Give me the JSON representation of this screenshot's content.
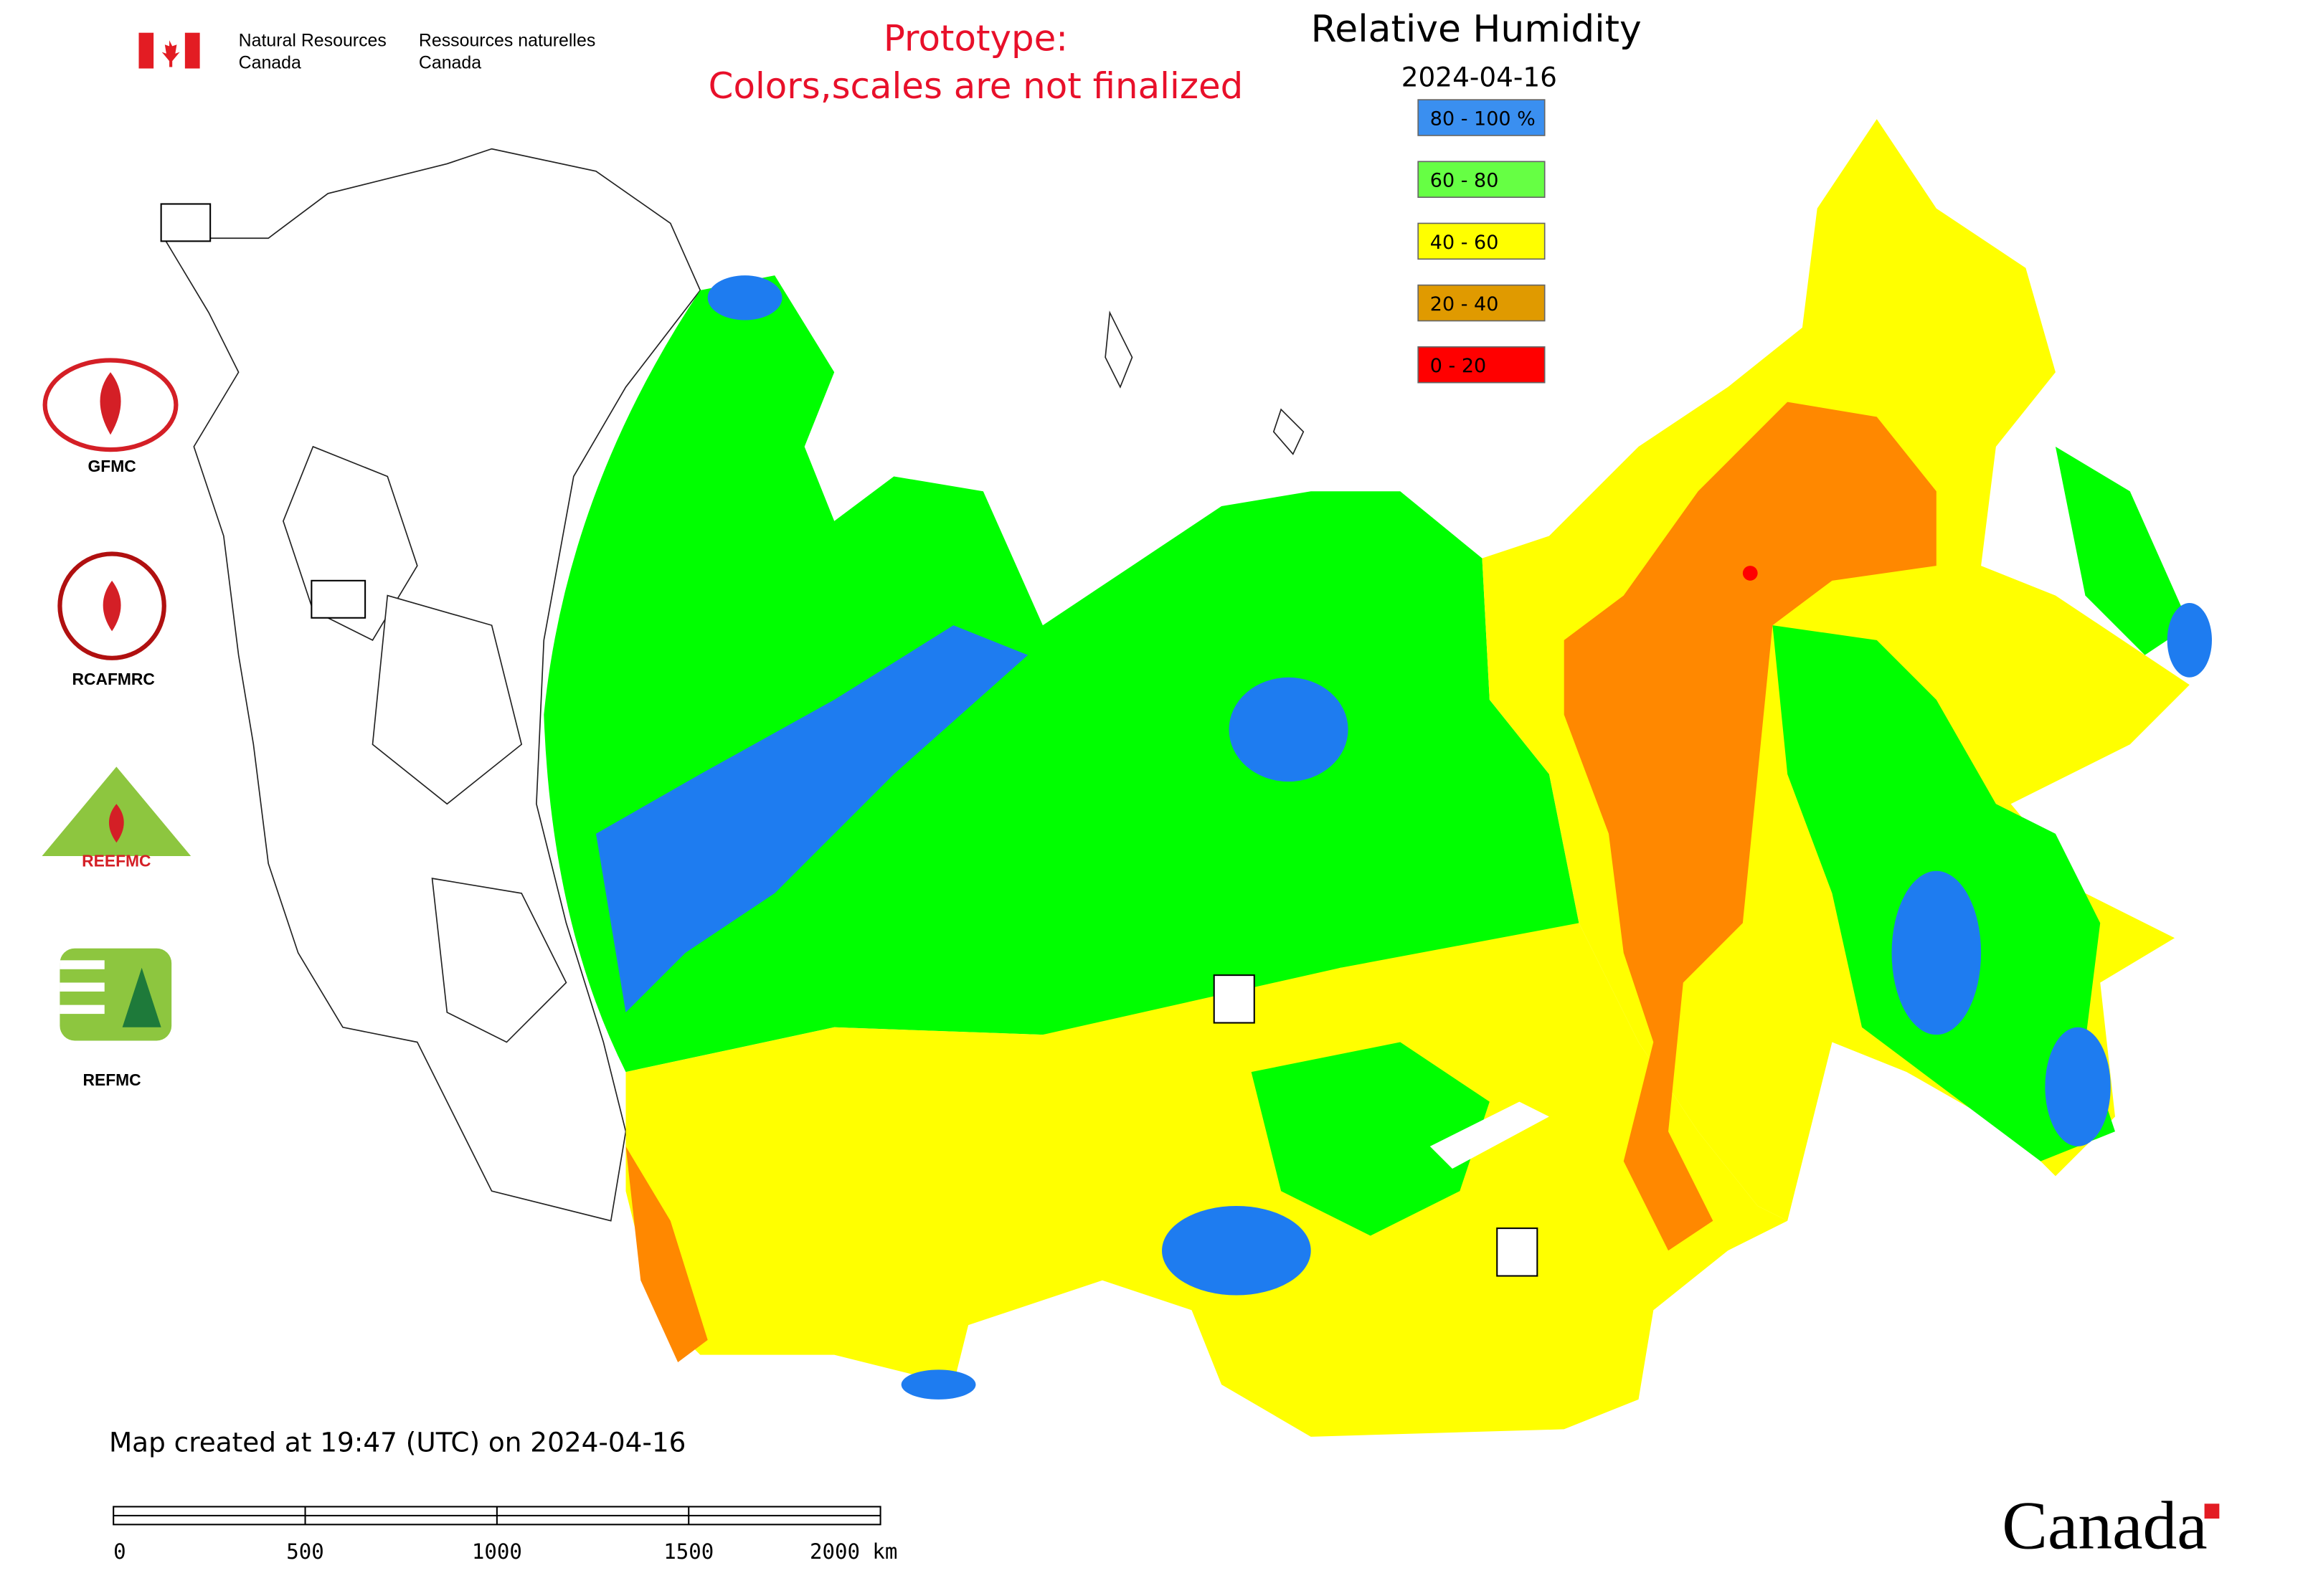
{
  "header": {
    "org_en_1": "Natural Resources",
    "org_en_2": "Canada",
    "org_fr_1": "Ressources naturelles",
    "org_fr_2": "Canada"
  },
  "notice": [
    "Prototype:",
    "Colors,scales are not finalized"
  ],
  "title": "Relative Humidity",
  "date": "2024-04-16",
  "legend": [
    {
      "label": "80 - 100 %",
      "color": "#3a8ff0"
    },
    {
      "label": "60 - 80",
      "color": "#66ff44"
    },
    {
      "label": "40 - 60",
      "color": "#ffff00"
    },
    {
      "label": "20 - 40",
      "color": "#e09a00"
    },
    {
      "label": "0 - 20",
      "color": "#ff0000"
    }
  ],
  "logos": [
    "GFMC",
    "RCAFMRC",
    "REEFMC",
    "REFMC"
  ],
  "footer": {
    "created": "Map created at 19:47 (UTC) on 2024-04-16",
    "scale_labels": [
      "0",
      "500",
      "1000",
      "1500",
      "2000 km"
    ],
    "wordmark": "Canada"
  }
}
